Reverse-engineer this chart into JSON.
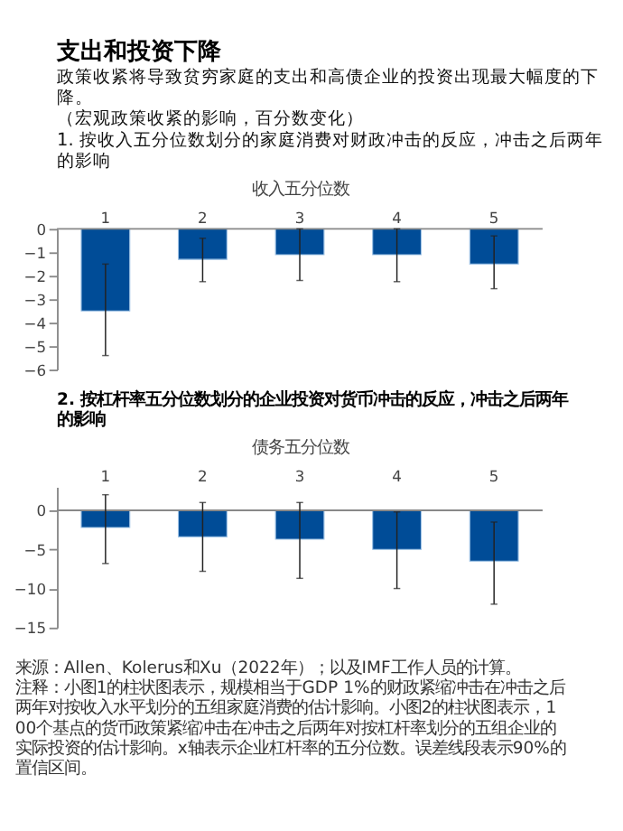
{
  "chart_data": [
    {
      "type": "bar",
      "title": "支出和投资下降",
      "subtitle": [
        "政策收紧将导致贫穷家庭的支出和高债企业的投资出现最大幅度的下降。",
        "（宏观政策收紧的影响，百分数变化）",
        "1. 按收入五分位数划分的家庭消费对财政冲击的反应，冲击之后两年的影响"
      ],
      "xlabel": "收入五分位数",
      "categories": [
        "1",
        "2",
        "3",
        "4",
        "5"
      ],
      "values": [
        -3.5,
        -1.3,
        -1.1,
        -1.1,
        -1.5
      ],
      "errors": [
        [
          -5.4,
          -1.5
        ],
        [
          -2.25,
          -0.4
        ],
        [
          -2.2,
          0
        ],
        [
          -2.25,
          0
        ],
        [
          -2.55,
          -0.3
        ]
      ],
      "color": "#004c97",
      "ylim": [
        -6,
        0
      ],
      "yticks": [
        -6,
        -5,
        -4,
        -3,
        -2,
        -1,
        0
      ],
      "grid": false
    },
    {
      "type": "bar",
      "title": "2. 按杠杆率五分位数划分的企业投资对货币冲击的反应，冲击之后两年的影响",
      "xlabel": "债务五分位数",
      "categories": [
        "1",
        "2",
        "3",
        "4",
        "5"
      ],
      "values": [
        -2.2,
        -3.4,
        -3.7,
        -5.0,
        -6.5
      ],
      "errors": [
        [
          -6.8,
          2.0
        ],
        [
          -7.8,
          1.0
        ],
        [
          -8.7,
          1.0
        ],
        [
          -10,
          -0.2
        ],
        [
          -12,
          -1.5
        ]
      ],
      "color": "#004c97",
      "ylim": [
        -15,
        3
      ],
      "yticks": [
        -15,
        -10,
        -5,
        0
      ],
      "grid": false,
      "annotations": [
        "来源：Allen、Kolerus和Xu（2022年）；以及IMF工作人员的计算。",
        "注释：小图1的柱状图表示，规模相当于GDP 1%的财政紧缩冲击在冲击之后两年对按收入水平划分的五组家庭消费的估计影响。小图2的柱状图表示，100个基点的货币政策紧缩冲击在冲击之后两年对按杠杆率划分的五组企业的实际投资的估计影响。x轴表示企业杠杆率的五分位数。误差线段表示90%的置信区间。"
      ]
    }
  ]
}
